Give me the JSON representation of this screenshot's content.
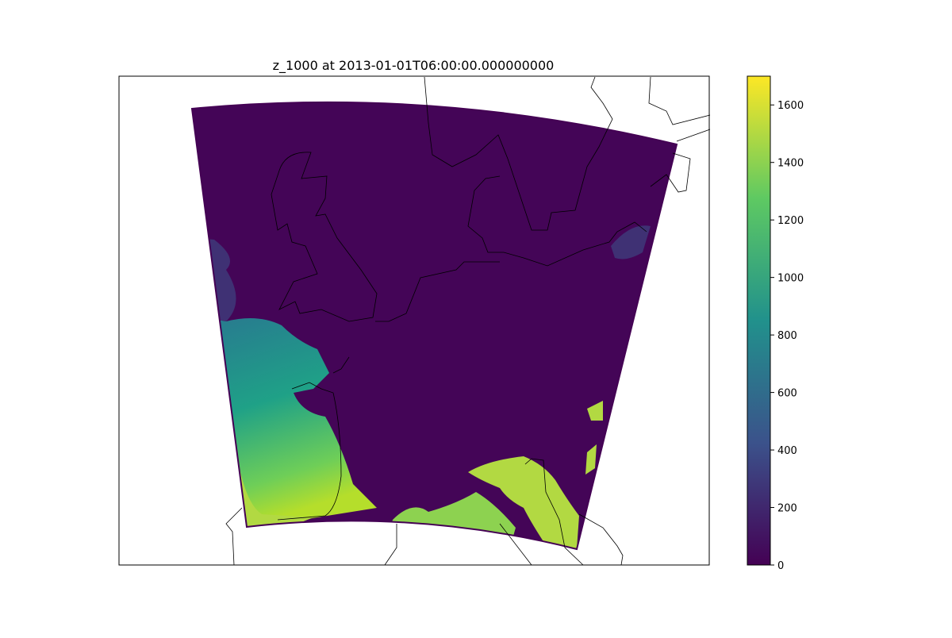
{
  "chart_data": {
    "type": "heatmap",
    "title": "z_1000 at 2013-01-01T06:00:00.000000000",
    "xlabel": "",
    "ylabel": "",
    "grid": false,
    "colormap": "viridis",
    "colormap_stops": [
      "#440154",
      "#3b528b",
      "#21918c",
      "#5ec962",
      "#fde725"
    ],
    "colorbar": {
      "location": "right",
      "vmin": 0,
      "vmax": 1700,
      "ticks": [
        0,
        200,
        400,
        600,
        800,
        1000,
        1200,
        1400,
        1600
      ]
    },
    "field_summary": {
      "variable": "z_1000",
      "regions": [
        {
          "description": "north and central land mass",
          "value": 20
        },
        {
          "description": "northwest sea edge",
          "value": 250
        },
        {
          "description": "western sea, north",
          "value": 650
        },
        {
          "description": "western sea, central",
          "value": 1000
        },
        {
          "description": "western sea, southwest corner",
          "value": 1450
        },
        {
          "description": "southern strip",
          "value": 1400
        },
        {
          "description": "southeast patches",
          "value": 1500
        }
      ]
    }
  }
}
